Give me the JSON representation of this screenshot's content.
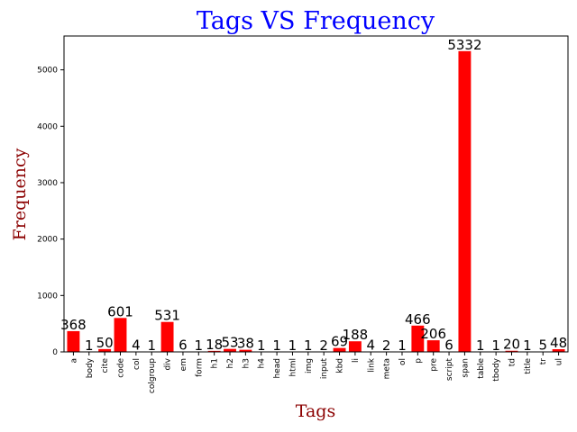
{
  "chart_data": {
    "type": "bar",
    "title": "Tags VS Frequency",
    "xlabel": "Tags",
    "ylabel": "Frequency",
    "categories": [
      "a",
      "body",
      "cite",
      "code",
      "col",
      "colgroup",
      "div",
      "em",
      "form",
      "h1",
      "h2",
      "h3",
      "h4",
      "head",
      "html",
      "img",
      "input",
      "kbd",
      "li",
      "link",
      "meta",
      "ol",
      "p",
      "pre",
      "script",
      "span",
      "table",
      "tbody",
      "td",
      "title",
      "tr",
      "ul"
    ],
    "values": [
      368,
      1,
      50,
      601,
      4,
      1,
      531,
      6,
      1,
      18,
      53,
      38,
      1,
      1,
      1,
      1,
      2,
      69,
      188,
      4,
      2,
      1,
      466,
      206,
      6,
      5332,
      1,
      1,
      20,
      1,
      5,
      48
    ],
    "yticks": [
      0,
      1000,
      2000,
      3000,
      4000,
      5000
    ],
    "ylim": [
      0,
      5600
    ],
    "bar_color": "#ff0000",
    "title_color": "#0000ff",
    "axis_label_color": "#8b0000",
    "grid": false
  }
}
